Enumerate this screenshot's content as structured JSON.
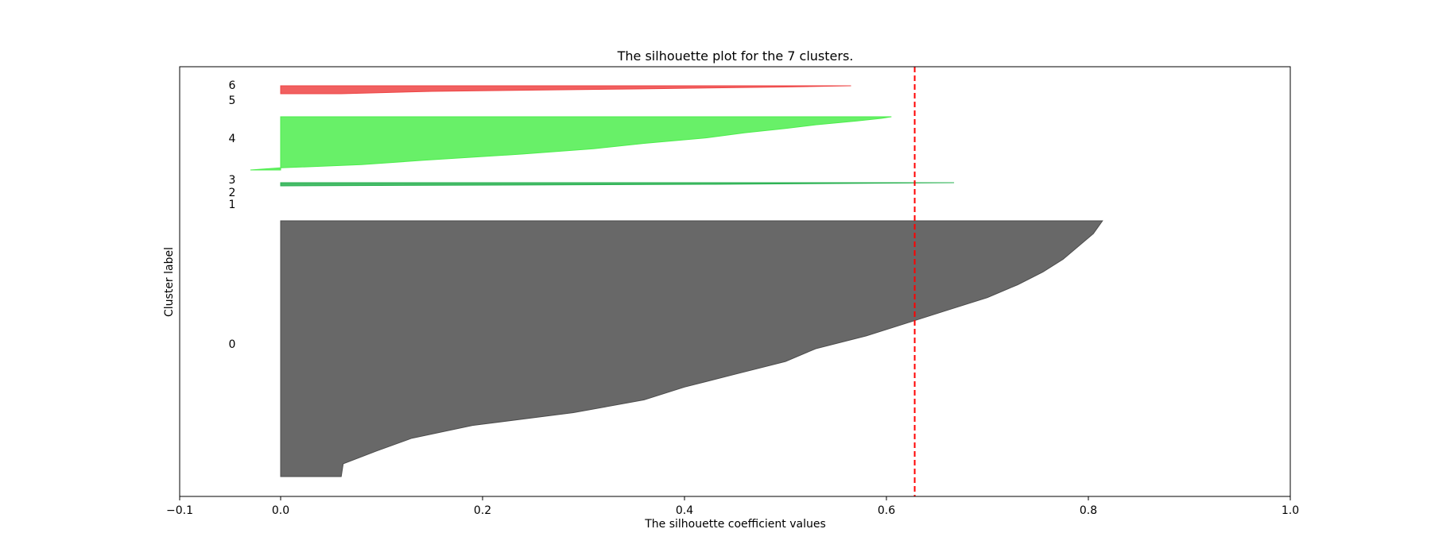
{
  "chart_data": {
    "type": "area",
    "title": "The silhouette plot for the 7 clusters.",
    "xlabel": "The silhouette coefficient values",
    "ylabel": "Cluster label",
    "xlim": [
      -0.1,
      1.0
    ],
    "xticks": [
      -0.1,
      0.0,
      0.2,
      0.4,
      0.6,
      0.8,
      1.0
    ],
    "xtick_labels": [
      "−0.1",
      "0.0",
      "0.2",
      "0.4",
      "0.6",
      "0.8",
      "1.0"
    ],
    "yticks_shown": false,
    "grid": false,
    "average_silhouette": 0.628,
    "average_line_color": "#ff0000",
    "clusters": [
      {
        "label": "0",
        "color": "#4d4d4d",
        "min": 0.0,
        "max": 0.814,
        "profile": [
          [
            0.0,
            0.06
          ],
          [
            0.05,
            0.062
          ],
          [
            0.1,
            0.095
          ],
          [
            0.15,
            0.13
          ],
          [
            0.2,
            0.19
          ],
          [
            0.25,
            0.29
          ],
          [
            0.3,
            0.36
          ],
          [
            0.35,
            0.4
          ],
          [
            0.4,
            0.45
          ],
          [
            0.45,
            0.5
          ],
          [
            0.5,
            0.53
          ],
          [
            0.55,
            0.58
          ],
          [
            0.6,
            0.62
          ],
          [
            0.65,
            0.66
          ],
          [
            0.7,
            0.7
          ],
          [
            0.75,
            0.73
          ],
          [
            0.8,
            0.755
          ],
          [
            0.85,
            0.775
          ],
          [
            0.9,
            0.79
          ],
          [
            0.95,
            0.805
          ],
          [
            1.0,
            0.814
          ]
        ]
      },
      {
        "label": "1",
        "color": "#1a8a6a",
        "min": 0.0,
        "max": 0.0,
        "profile": [
          [
            0.0,
            0.0
          ],
          [
            1.0,
            0.0
          ]
        ]
      },
      {
        "label": "2",
        "color": "#1fa060",
        "min": 0.0,
        "max": 0.0,
        "profile": [
          [
            0.0,
            0.0
          ],
          [
            1.0,
            0.0
          ]
        ]
      },
      {
        "label": "3",
        "color": "#27b04f",
        "min": 0.0,
        "max": 0.667,
        "profile": [
          [
            0.0,
            0.0
          ],
          [
            0.5,
            0.43
          ],
          [
            0.8,
            0.58
          ],
          [
            1.0,
            0.667
          ]
        ]
      },
      {
        "label": "4",
        "color": "#4ded4d",
        "min": -0.03,
        "max": 0.605,
        "profile": [
          [
            0.0,
            -0.03
          ],
          [
            0.04,
            0.0
          ],
          [
            0.1,
            0.08
          ],
          [
            0.18,
            0.14
          ],
          [
            0.3,
            0.24
          ],
          [
            0.4,
            0.31
          ],
          [
            0.5,
            0.36
          ],
          [
            0.6,
            0.42
          ],
          [
            0.7,
            0.46
          ],
          [
            0.78,
            0.5
          ],
          [
            0.85,
            0.53
          ],
          [
            0.92,
            0.57
          ],
          [
            0.97,
            0.595
          ],
          [
            1.0,
            0.605
          ]
        ]
      },
      {
        "label": "5",
        "color": "#00cc00",
        "min": 0.0,
        "max": 0.0,
        "profile": [
          [
            0.0,
            0.0
          ],
          [
            1.0,
            0.0
          ]
        ]
      },
      {
        "label": "6",
        "color": "#ee4444",
        "min": 0.0,
        "max": 0.565,
        "profile": [
          [
            0.0,
            0.06
          ],
          [
            0.3,
            0.15
          ],
          [
            0.6,
            0.35
          ],
          [
            0.85,
            0.5
          ],
          [
            1.0,
            0.565
          ]
        ]
      }
    ]
  }
}
